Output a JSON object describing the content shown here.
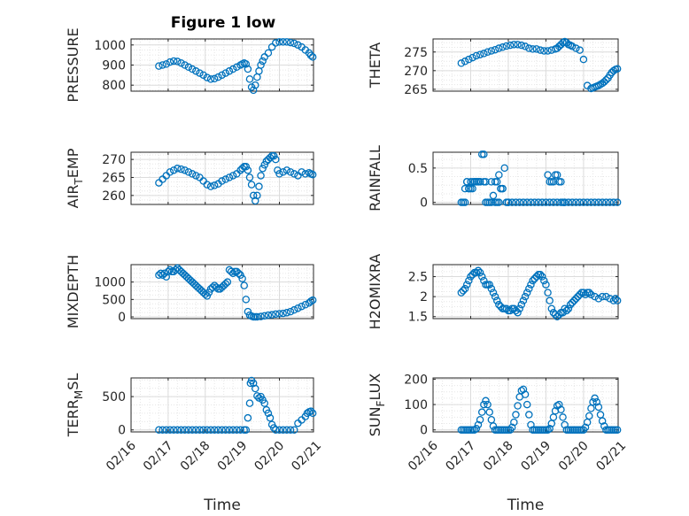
{
  "figure": {
    "title": "Figure 1 low"
  },
  "colors": {
    "marker": "#0072BD",
    "grid": "#dcdcdc",
    "axis": "#262626"
  },
  "chart_data": [
    {
      "type": "scatter",
      "title": "Figure 1 low",
      "ylabel": "PRESSURE",
      "xlabel": "",
      "xlim": [
        0,
        4.92
      ],
      "ylim": [
        770,
        1030
      ],
      "yticks": [
        800,
        900,
        1000
      ],
      "xticks": [
        0,
        1,
        2,
        3,
        4
      ],
      "xticklabels": [
        "02/16",
        "02/17",
        "02/18",
        "02/19",
        "02/20",
        "02/21"
      ],
      "grid": true,
      "x": [
        0.75,
        0.85,
        0.95,
        1.05,
        1.15,
        1.25,
        1.35,
        1.45,
        1.55,
        1.65,
        1.75,
        1.85,
        1.95,
        2.05,
        2.15,
        2.25,
        2.35,
        2.45,
        2.55,
        2.65,
        2.75,
        2.85,
        2.95,
        3.0,
        3.05,
        3.1,
        3.15,
        3.2,
        3.25,
        3.3,
        3.35,
        3.4,
        3.45,
        3.5,
        3.55,
        3.6,
        3.7,
        3.8,
        3.9,
        4.0,
        4.1,
        4.2,
        4.3,
        4.4,
        4.5,
        4.6,
        4.7,
        4.8,
        4.85,
        4.9
      ],
      "y": [
        895,
        900,
        905,
        915,
        920,
        918,
        910,
        900,
        890,
        880,
        870,
        860,
        850,
        838,
        830,
        832,
        840,
        850,
        860,
        870,
        880,
        890,
        900,
        905,
        910,
        905,
        880,
        830,
        790,
        775,
        800,
        840,
        870,
        900,
        920,
        940,
        960,
        990,
        1010,
        1015,
        1015,
        1015,
        1012,
        1008,
        1000,
        990,
        975,
        960,
        948,
        940
      ]
    },
    {
      "type": "scatter",
      "ylabel": "THETA",
      "xlabel": "",
      "xlim": [
        0,
        4.92
      ],
      "ylim": [
        264.5,
        278.5
      ],
      "yticks": [
        265,
        270,
        275
      ],
      "xticks": [
        0,
        1,
        2,
        3,
        4
      ],
      "xticklabels": [
        "02/16",
        "02/17",
        "02/18",
        "02/19",
        "02/20",
        "02/21"
      ],
      "grid": true,
      "x": [
        0.75,
        0.85,
        0.95,
        1.05,
        1.15,
        1.25,
        1.35,
        1.45,
        1.55,
        1.65,
        1.75,
        1.85,
        1.95,
        2.05,
        2.15,
        2.25,
        2.35,
        2.45,
        2.55,
        2.65,
        2.75,
        2.85,
        2.95,
        3.05,
        3.15,
        3.25,
        3.3,
        3.35,
        3.4,
        3.45,
        3.5,
        3.55,
        3.6,
        3.65,
        3.7,
        3.8,
        3.9,
        4.0,
        4.1,
        4.2,
        4.25,
        4.3,
        4.35,
        4.4,
        4.45,
        4.5,
        4.55,
        4.6,
        4.65,
        4.7,
        4.75,
        4.8,
        4.85,
        4.9
      ],
      "y": [
        272,
        272.5,
        273,
        273.5,
        274,
        274.3,
        274.6,
        275,
        275.3,
        275.6,
        276,
        276.3,
        276.6,
        276.8,
        277,
        277,
        276.8,
        276.5,
        276,
        275.8,
        275.8,
        275.5,
        275.3,
        275.3,
        275.5,
        275.8,
        276,
        276.5,
        277,
        277.5,
        277.8,
        277.5,
        277,
        276.8,
        276.5,
        276,
        275.5,
        273,
        266,
        265.2,
        265.4,
        265.6,
        265.8,
        266,
        266.3,
        266.6,
        267,
        267.5,
        268,
        268.8,
        269.5,
        270,
        270.3,
        270.5
      ]
    },
    {
      "type": "scatter",
      "ylabel": "AIR_TEMP",
      "xlabel": "",
      "xlim": [
        0,
        4.92
      ],
      "ylim": [
        257.5,
        272
      ],
      "yticks": [
        260,
        265,
        270
      ],
      "xticks": [
        0,
        1,
        2,
        3,
        4
      ],
      "xticklabels": [
        "02/16",
        "02/17",
        "02/18",
        "02/19",
        "02/20",
        "02/21"
      ],
      "grid": true,
      "x": [
        0.75,
        0.85,
        0.95,
        1.05,
        1.15,
        1.25,
        1.35,
        1.45,
        1.55,
        1.65,
        1.75,
        1.85,
        1.95,
        2.05,
        2.15,
        2.25,
        2.35,
        2.45,
        2.55,
        2.65,
        2.75,
        2.85,
        2.95,
        3.0,
        3.05,
        3.1,
        3.15,
        3.2,
        3.25,
        3.3,
        3.35,
        3.4,
        3.45,
        3.5,
        3.55,
        3.6,
        3.65,
        3.7,
        3.75,
        3.8,
        3.85,
        3.9,
        3.95,
        4.0,
        4.1,
        4.2,
        4.3,
        4.4,
        4.5,
        4.6,
        4.7,
        4.8,
        4.85,
        4.9
      ],
      "y": [
        263.5,
        264.5,
        265.5,
        266.5,
        267,
        267.5,
        267.3,
        267,
        266.5,
        266,
        265.5,
        265,
        264,
        263,
        262.5,
        262.8,
        263.2,
        264,
        264.5,
        265,
        265.5,
        266,
        267,
        267.5,
        268,
        268,
        267,
        265,
        263,
        260,
        258.5,
        260,
        262.5,
        265.5,
        267.5,
        268.5,
        269.5,
        270,
        270.5,
        271,
        271,
        270,
        267,
        266,
        266.5,
        267,
        266.5,
        266,
        265.5,
        266.5,
        266,
        266.3,
        266,
        265.8
      ]
    },
    {
      "type": "scatter",
      "ylabel": "RAINFALL",
      "xlabel": "",
      "xlim": [
        0,
        4.92
      ],
      "ylim": [
        -0.03,
        0.73
      ],
      "yticks": [
        0,
        0.5
      ],
      "xticks": [
        0,
        1,
        2,
        3,
        4
      ],
      "xticklabels": [
        "02/16",
        "02/17",
        "02/18",
        "02/19",
        "02/20",
        "02/21"
      ],
      "grid": true,
      "x": [
        0.75,
        0.8,
        0.85,
        0.9,
        0.95,
        1.0,
        1.05,
        1.1,
        1.15,
        1.2,
        1.25,
        1.3,
        1.35,
        1.4,
        1.45,
        1.5,
        1.55,
        1.6,
        1.65,
        1.7,
        1.75,
        1.8,
        1.85,
        1.9,
        1.95,
        2.0,
        2.1,
        2.2,
        2.3,
        2.4,
        2.5,
        2.6,
        2.7,
        2.8,
        2.9,
        3.0,
        3.1,
        3.2,
        3.3,
        3.4,
        3.5,
        3.6,
        3.7,
        3.8,
        3.9,
        4.0,
        4.1,
        4.2,
        4.3,
        4.4,
        4.5,
        4.6,
        4.7,
        4.8,
        4.9,
        0.85,
        0.9,
        0.95,
        1.0,
        1.05,
        1.1,
        1.15,
        1.2,
        1.25,
        1.35,
        1.4,
        1.55,
        1.65,
        1.7,
        1.75,
        1.8,
        1.85,
        2.0,
        3.05,
        3.1,
        3.15,
        3.2,
        3.25,
        3.3,
        3.35,
        3.4,
        3.45,
        3.5
      ],
      "y": [
        0,
        0,
        0,
        0.3,
        0.2,
        0.2,
        0.3,
        0.3,
        0.3,
        0.3,
        0.3,
        0.7,
        0.7,
        0,
        0,
        0,
        0,
        0.1,
        0,
        0,
        0,
        0.2,
        0.2,
        0.5,
        0,
        0,
        0,
        0,
        0,
        0,
        0,
        0,
        0,
        0,
        0,
        0,
        0,
        0,
        0,
        0,
        0,
        0,
        0,
        0,
        0,
        0,
        0,
        0,
        0,
        0,
        0,
        0,
        0,
        0,
        0,
        0.2,
        0.3,
        0.2,
        0.3,
        0.2,
        0.3,
        0.3,
        0.3,
        0.3,
        0.3,
        0.3,
        0.3,
        0.3,
        0.3,
        0.4,
        0.2,
        0.2,
        0,
        0.4,
        0.3,
        0.3,
        0.3,
        0.4,
        0.4,
        0.3,
        0.3,
        0,
        0
      ]
    },
    {
      "type": "scatter",
      "ylabel": "MIXDEPTH",
      "xlabel": "",
      "xlim": [
        0,
        4.92
      ],
      "ylim": [
        -50,
        1500
      ],
      "yticks": [
        0,
        500,
        1000
      ],
      "xticks": [
        0,
        1,
        2,
        3,
        4
      ],
      "xticklabels": [
        "02/16",
        "02/17",
        "02/18",
        "02/19",
        "02/20",
        "02/21"
      ],
      "grid": true,
      "x": [
        0.75,
        0.8,
        0.85,
        0.9,
        0.95,
        1.0,
        1.05,
        1.1,
        1.15,
        1.2,
        1.25,
        1.3,
        1.35,
        1.4,
        1.45,
        1.5,
        1.55,
        1.6,
        1.65,
        1.7,
        1.75,
        1.8,
        1.85,
        1.9,
        1.95,
        2.0,
        2.05,
        2.1,
        2.15,
        2.2,
        2.25,
        2.3,
        2.35,
        2.4,
        2.45,
        2.5,
        2.55,
        2.6,
        2.65,
        2.7,
        2.75,
        2.8,
        2.85,
        2.9,
        2.95,
        3.0,
        3.05,
        3.1,
        3.15,
        3.2,
        3.25,
        3.3,
        3.35,
        3.4,
        3.5,
        3.6,
        3.7,
        3.8,
        3.9,
        4.0,
        4.1,
        4.2,
        4.3,
        4.4,
        4.5,
        4.6,
        4.7,
        4.8,
        4.85,
        4.9
      ],
      "y": [
        1200,
        1250,
        1200,
        1250,
        1150,
        1300,
        1350,
        1300,
        1300,
        1350,
        1400,
        1350,
        1300,
        1250,
        1200,
        1150,
        1100,
        1050,
        1000,
        950,
        900,
        850,
        800,
        750,
        700,
        650,
        600,
        700,
        800,
        850,
        900,
        850,
        800,
        800,
        850,
        900,
        950,
        1000,
        1350,
        1300,
        1250,
        1300,
        1300,
        1250,
        1200,
        1100,
        900,
        500,
        150,
        50,
        20,
        0,
        0,
        0,
        10,
        30,
        50,
        60,
        80,
        90,
        100,
        120,
        150,
        200,
        250,
        300,
        350,
        400,
        450,
        480
      ]
    },
    {
      "type": "scatter",
      "ylabel": "H2OMIXRA",
      "xlabel": "",
      "xlim": [
        0,
        4.92
      ],
      "ylim": [
        1.45,
        2.8
      ],
      "yticks": [
        1.5,
        2,
        2.5
      ],
      "xticks": [
        0,
        1,
        2,
        3,
        4
      ],
      "xticklabels": [
        "02/16",
        "02/17",
        "02/18",
        "02/19",
        "02/20",
        "02/21"
      ],
      "grid": true,
      "x": [
        0.75,
        0.8,
        0.85,
        0.9,
        0.95,
        1.0,
        1.05,
        1.1,
        1.15,
        1.2,
        1.25,
        1.3,
        1.35,
        1.4,
        1.45,
        1.5,
        1.55,
        1.6,
        1.65,
        1.7,
        1.75,
        1.8,
        1.85,
        1.9,
        1.95,
        2.0,
        2.05,
        2.1,
        2.15,
        2.2,
        2.25,
        2.3,
        2.35,
        2.4,
        2.45,
        2.5,
        2.55,
        2.6,
        2.65,
        2.7,
        2.75,
        2.8,
        2.85,
        2.9,
        2.95,
        3.0,
        3.05,
        3.1,
        3.15,
        3.2,
        3.25,
        3.3,
        3.35,
        3.4,
        3.45,
        3.5,
        3.55,
        3.6,
        3.65,
        3.7,
        3.75,
        3.8,
        3.85,
        3.9,
        3.95,
        4.0,
        4.05,
        4.1,
        4.15,
        4.2,
        4.3,
        4.4,
        4.5,
        4.6,
        4.7,
        4.8,
        4.85,
        4.9
      ],
      "y": [
        2.1,
        2.15,
        2.2,
        2.3,
        2.4,
        2.5,
        2.55,
        2.6,
        2.6,
        2.65,
        2.6,
        2.5,
        2.4,
        2.3,
        2.3,
        2.3,
        2.2,
        2.1,
        2.0,
        1.9,
        1.8,
        1.75,
        1.7,
        1.7,
        1.7,
        1.65,
        1.65,
        1.7,
        1.7,
        1.65,
        1.6,
        1.7,
        1.8,
        1.9,
        2.0,
        2.1,
        2.2,
        2.3,
        2.4,
        2.45,
        2.5,
        2.55,
        2.55,
        2.5,
        2.4,
        2.3,
        2.1,
        1.9,
        1.7,
        1.6,
        1.55,
        1.5,
        1.55,
        1.6,
        1.6,
        1.7,
        1.65,
        1.7,
        1.8,
        1.85,
        1.9,
        1.95,
        2.0,
        2.05,
        2.1,
        2.1,
        2.05,
        2.1,
        2.1,
        2.05,
        2.0,
        1.95,
        2.0,
        2.0,
        1.95,
        1.9,
        1.95,
        1.9
      ]
    },
    {
      "type": "scatter",
      "ylabel": "TERR_MSL",
      "xlabel": "Time",
      "xlim": [
        0,
        4.92
      ],
      "ylim": [
        -30,
        780
      ],
      "yticks": [
        0,
        500
      ],
      "xticks": [
        0,
        1,
        2,
        3,
        4,
        5
      ],
      "xticklabels": [
        "02/16",
        "02/17",
        "02/18",
        "02/19",
        "02/20",
        "02/21"
      ],
      "grid": true,
      "x": [
        0.75,
        0.85,
        0.95,
        1.05,
        1.15,
        1.25,
        1.35,
        1.45,
        1.55,
        1.65,
        1.75,
        1.85,
        1.95,
        2.05,
        2.15,
        2.25,
        2.35,
        2.45,
        2.55,
        2.65,
        2.75,
        2.85,
        2.95,
        3.05,
        3.1,
        3.15,
        3.2,
        3.22,
        3.25,
        3.3,
        3.35,
        3.4,
        3.45,
        3.5,
        3.55,
        3.6,
        3.65,
        3.7,
        3.75,
        3.8,
        3.85,
        3.9,
        4.0,
        4.1,
        4.2,
        4.3,
        4.4,
        4.5,
        4.6,
        4.7,
        4.75,
        4.8,
        4.85,
        4.9
      ],
      "y": [
        0,
        0,
        0,
        0,
        0,
        0,
        0,
        0,
        0,
        0,
        0,
        0,
        0,
        0,
        0,
        0,
        0,
        0,
        0,
        0,
        0,
        0,
        0,
        0,
        0,
        180,
        400,
        700,
        740,
        700,
        620,
        510,
        480,
        500,
        450,
        400,
        300,
        250,
        180,
        80,
        30,
        0,
        0,
        0,
        0,
        0,
        0,
        100,
        150,
        200,
        250,
        270,
        280,
        250
      ]
    },
    {
      "type": "scatter",
      "ylabel": "SUN_FLUX",
      "xlabel": "Time",
      "xlim": [
        0,
        4.92
      ],
      "ylim": [
        -8,
        205
      ],
      "yticks": [
        0,
        100,
        200
      ],
      "xticks": [
        0,
        1,
        2,
        3,
        4,
        5
      ],
      "xticklabels": [
        "02/16",
        "02/17",
        "02/18",
        "02/19",
        "02/20",
        "02/21"
      ],
      "grid": true,
      "x": [
        0.75,
        0.8,
        0.85,
        0.9,
        0.95,
        1.0,
        1.05,
        1.1,
        1.15,
        1.2,
        1.25,
        1.3,
        1.35,
        1.4,
        1.45,
        1.5,
        1.55,
        1.6,
        1.65,
        1.7,
        1.75,
        1.8,
        1.85,
        1.9,
        1.95,
        2.0,
        2.05,
        2.1,
        2.15,
        2.2,
        2.25,
        2.3,
        2.35,
        2.4,
        2.45,
        2.5,
        2.55,
        2.6,
        2.65,
        2.7,
        2.75,
        2.8,
        2.85,
        2.9,
        2.95,
        3.0,
        3.05,
        3.1,
        3.15,
        3.2,
        3.25,
        3.3,
        3.35,
        3.4,
        3.45,
        3.5,
        3.55,
        3.6,
        3.65,
        3.7,
        3.75,
        3.8,
        3.85,
        3.9,
        3.95,
        4.0,
        4.05,
        4.1,
        4.15,
        4.2,
        4.25,
        4.3,
        4.35,
        4.4,
        4.45,
        4.5,
        4.55,
        4.6,
        4.65,
        4.7,
        4.75,
        4.8,
        4.85,
        4.9
      ],
      "y": [
        0,
        0,
        0,
        0,
        0,
        0,
        0,
        0,
        5,
        20,
        40,
        70,
        100,
        115,
        100,
        70,
        40,
        15,
        0,
        0,
        0,
        0,
        0,
        0,
        0,
        0,
        0,
        10,
        30,
        60,
        95,
        130,
        155,
        160,
        140,
        100,
        60,
        20,
        0,
        0,
        0,
        0,
        0,
        0,
        0,
        0,
        0,
        5,
        25,
        50,
        75,
        95,
        100,
        80,
        50,
        20,
        0,
        0,
        0,
        0,
        0,
        0,
        0,
        0,
        0,
        0,
        10,
        30,
        55,
        85,
        110,
        125,
        110,
        90,
        60,
        35,
        15,
        0,
        0,
        0,
        0,
        0,
        0,
        0
      ]
    }
  ],
  "panels": [
    {
      "ylabel_main": "PRESSURE",
      "ylabel_sub": "",
      "ylabel_tail": ""
    },
    {
      "ylabel_main": "THETA",
      "ylabel_sub": "",
      "ylabel_tail": ""
    },
    {
      "ylabel_main": "AIR",
      "ylabel_sub": "T",
      "ylabel_tail": "EMP"
    },
    {
      "ylabel_main": "RAINFALL",
      "ylabel_sub": "",
      "ylabel_tail": ""
    },
    {
      "ylabel_main": "MIXDEPTH",
      "ylabel_sub": "",
      "ylabel_tail": ""
    },
    {
      "ylabel_main": "H2OMIXRA",
      "ylabel_sub": "",
      "ylabel_tail": ""
    },
    {
      "ylabel_main": "TERR",
      "ylabel_sub": "M",
      "ylabel_tail": "SL"
    },
    {
      "ylabel_main": "SUN",
      "ylabel_sub": "F",
      "ylabel_tail": "LUX"
    }
  ]
}
